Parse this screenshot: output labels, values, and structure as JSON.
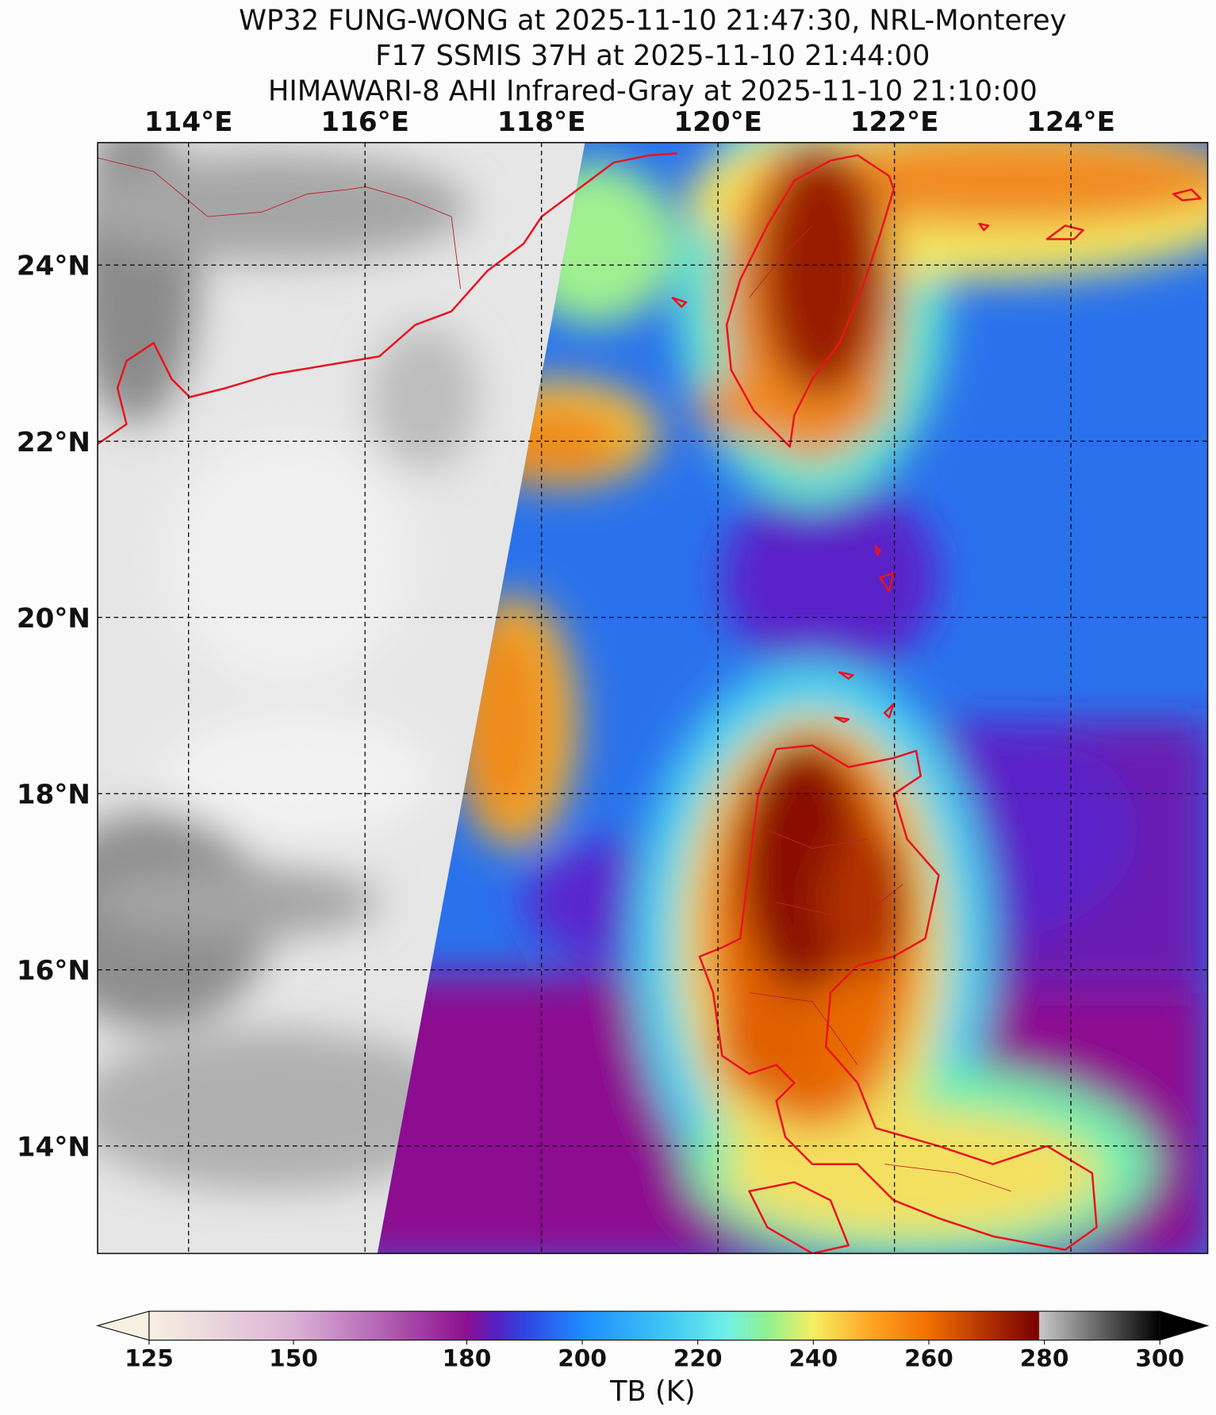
{
  "titles": [
    "WP32 FUNG-WONG at 2025-11-10 21:47:30, NRL-Monterey",
    "F17 SSMIS 37H at 2025-11-10 21:44:00",
    "HIMAWARI-8 AHI Infrared-Gray at 2025-11-10 21:10:00"
  ],
  "map": {
    "xlim": [
      112.97,
      125.55
    ],
    "ylim": [
      12.78,
      25.39
    ],
    "xticks": [
      {
        "value": 114,
        "label": "114°E"
      },
      {
        "value": 116,
        "label": "116°E"
      },
      {
        "value": 118,
        "label": "118°E"
      },
      {
        "value": 120,
        "label": "120°E"
      },
      {
        "value": 122,
        "label": "122°E"
      },
      {
        "value": 124,
        "label": "124°E"
      }
    ],
    "yticks": [
      {
        "value": 14,
        "label": "14°N"
      },
      {
        "value": 16,
        "label": "16°N"
      },
      {
        "value": 18,
        "label": "18°N"
      },
      {
        "value": 20,
        "label": "20°N"
      },
      {
        "value": 22,
        "label": "22°N"
      },
      {
        "value": 24,
        "label": "24°N"
      }
    ],
    "grid": true
  },
  "colorbar": {
    "lim": [
      125,
      300
    ],
    "ticks": [
      125,
      150,
      180,
      200,
      220,
      240,
      260,
      280,
      300
    ],
    "label": "TB (K)"
  }
}
